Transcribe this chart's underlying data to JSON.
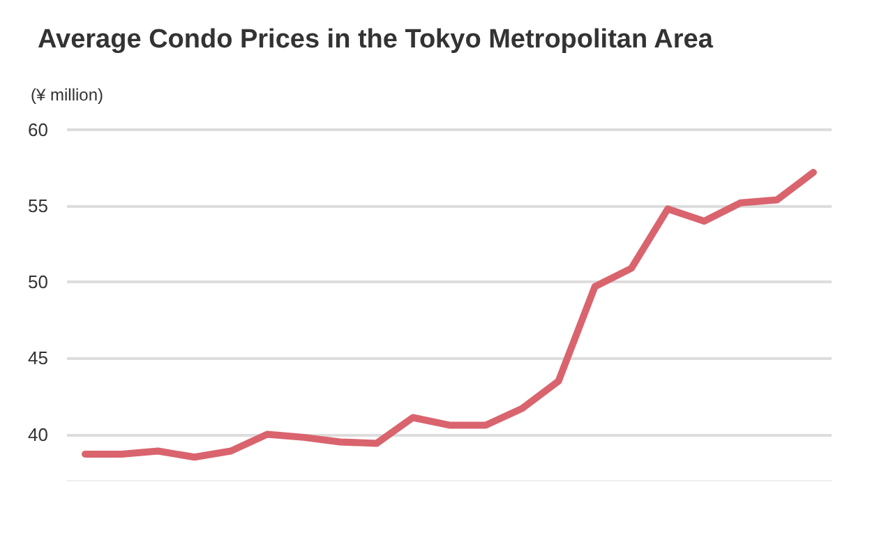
{
  "chart_data": {
    "type": "line",
    "title": "Average Condo Prices in the Tokyo Metropolitan Area",
    "ylabel": "(¥ million)",
    "categories": [
      null,
      null,
      null,
      null,
      null,
      null,
      null,
      null,
      null,
      null,
      null,
      null,
      null,
      null,
      null,
      null,
      null,
      null,
      null,
      null,
      null
    ],
    "series": [
      {
        "color": "#d9646e",
        "values": [
          38.7,
          38.7,
          38.9,
          38.5,
          38.9,
          40.0,
          39.8,
          39.5,
          39.4,
          41.1,
          40.6,
          40.6,
          41.7,
          43.5,
          49.7,
          50.9,
          54.8,
          54.0,
          55.2,
          55.4,
          57.2
        ]
      }
    ],
    "ylim": [
      37,
      60
    ],
    "yticks": [
      40,
      45,
      50,
      55,
      60
    ],
    "grid": "y",
    "marker": "none",
    "line_style": "solid"
  }
}
